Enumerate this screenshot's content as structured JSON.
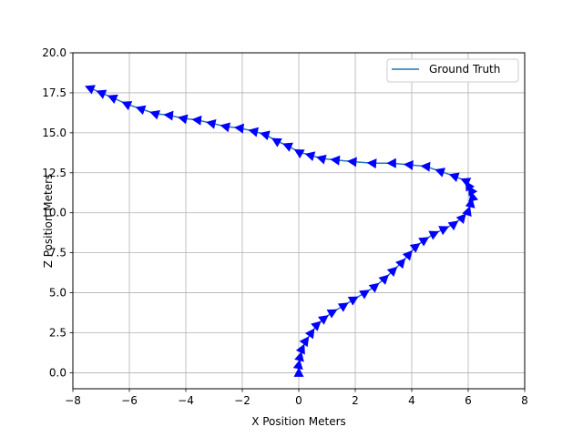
{
  "chart_data": {
    "type": "line",
    "title": "",
    "xlabel": "X Position Meters",
    "ylabel": "Z Position Meters",
    "xlim": [
      -8,
      8
    ],
    "ylim": [
      -1,
      20
    ],
    "xticks": [
      -8,
      -6,
      -4,
      -2,
      0,
      2,
      4,
      6,
      8
    ],
    "yticks": [
      0.0,
      2.5,
      5.0,
      7.5,
      10.0,
      12.5,
      15.0,
      17.5,
      20.0
    ],
    "xtick_labels": [
      "−8",
      "−6",
      "−4",
      "−2",
      "0",
      "2",
      "4",
      "6",
      "8"
    ],
    "ytick_labels": [
      "0.0",
      "2.5",
      "5.0",
      "7.5",
      "10.0",
      "12.5",
      "15.0",
      "17.5",
      "20.0"
    ],
    "grid": true,
    "legend_position": "top-right",
    "series": [
      {
        "name": "Ground Truth",
        "color": "#1f77b4",
        "marker_color": "#0000ff",
        "marker": "triangle-heading",
        "x": [
          0.0,
          0.0,
          0.05,
          0.12,
          0.25,
          0.45,
          0.65,
          0.9,
          1.2,
          1.6,
          1.95,
          2.35,
          2.7,
          3.05,
          3.35,
          3.65,
          3.9,
          4.15,
          4.45,
          4.8,
          5.15,
          5.5,
          5.8,
          6.0,
          6.1,
          6.15,
          6.1,
          6.0,
          5.9,
          5.5,
          5.0,
          4.5,
          3.9,
          3.3,
          2.6,
          1.9,
          1.3,
          0.8,
          0.4,
          0.0,
          -0.4,
          -0.8,
          -1.2,
          -1.6,
          -2.1,
          -2.6,
          -3.1,
          -3.6,
          -4.1,
          -4.6,
          -5.1,
          -5.6,
          -6.1,
          -6.6,
          -7.0,
          -7.4
        ],
        "z": [
          0.0,
          0.5,
          1.0,
          1.5,
          2.0,
          2.5,
          3.0,
          3.4,
          3.8,
          4.2,
          4.6,
          5.0,
          5.4,
          5.9,
          6.4,
          6.9,
          7.4,
          7.9,
          8.3,
          8.7,
          9.0,
          9.3,
          9.7,
          10.1,
          10.6,
          11.0,
          11.4,
          11.7,
          12.0,
          12.3,
          12.6,
          12.9,
          13.0,
          13.1,
          13.1,
          13.2,
          13.3,
          13.4,
          13.6,
          13.8,
          14.2,
          14.5,
          14.9,
          15.1,
          15.3,
          15.4,
          15.6,
          15.8,
          15.9,
          16.1,
          16.2,
          16.5,
          16.8,
          17.2,
          17.5,
          17.8
        ]
      }
    ]
  }
}
